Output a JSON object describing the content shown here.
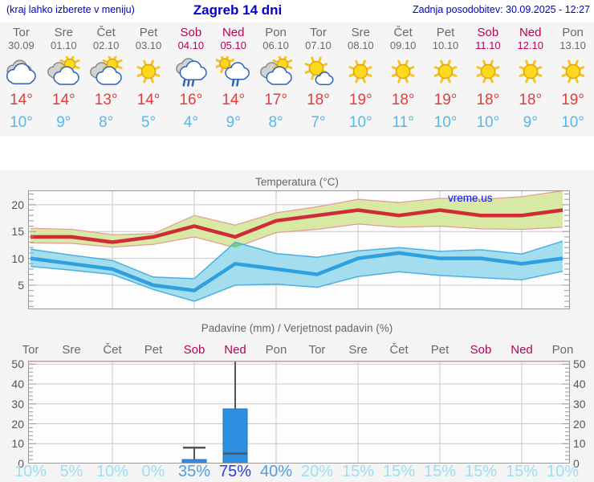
{
  "header": {
    "left_note": "(kraj lahko izberete v meniju)",
    "title": "Zagreb 14 dni",
    "updated": "Zadnja posodobitev: 30.09.2025 - 12:27"
  },
  "watermark": "vreme.us",
  "degree_symbol": "°",
  "days": [
    {
      "name": "Tor",
      "date": "30.09",
      "weekend": false,
      "icon": "cloudy",
      "high_label": "14°",
      "low_label": "10°",
      "prob_label": "10%",
      "prob": 10
    },
    {
      "name": "Sre",
      "date": "01.10",
      "weekend": false,
      "icon": "partly",
      "high_label": "14°",
      "low_label": "9°",
      "prob_label": "5%",
      "prob": 5
    },
    {
      "name": "Čet",
      "date": "02.10",
      "weekend": false,
      "icon": "partly",
      "high_label": "13°",
      "low_label": "8°",
      "prob_label": "10%",
      "prob": 10
    },
    {
      "name": "Pet",
      "date": "03.10",
      "weekend": false,
      "icon": "sunny",
      "high_label": "14°",
      "low_label": "5°",
      "prob_label": "0%",
      "prob": 0
    },
    {
      "name": "Sob",
      "date": "04.10",
      "weekend": true,
      "icon": "rain",
      "high_label": "16°",
      "low_label": "4°",
      "prob_label": "35%",
      "prob": 35
    },
    {
      "name": "Ned",
      "date": "05.10",
      "weekend": true,
      "icon": "sun-rain",
      "high_label": "14°",
      "low_label": "9°",
      "prob_label": "75%",
      "prob": 75
    },
    {
      "name": "Pon",
      "date": "06.10",
      "weekend": false,
      "icon": "partly",
      "high_label": "17°",
      "low_label": "8°",
      "prob_label": "40%",
      "prob": 40
    },
    {
      "name": "Tor",
      "date": "07.10",
      "weekend": false,
      "icon": "mostly-sunny",
      "high_label": "18°",
      "low_label": "7°",
      "prob_label": "20%",
      "prob": 20
    },
    {
      "name": "Sre",
      "date": "08.10",
      "weekend": false,
      "icon": "sunny",
      "high_label": "19°",
      "low_label": "10°",
      "prob_label": "15%",
      "prob": 15
    },
    {
      "name": "Čet",
      "date": "09.10",
      "weekend": false,
      "icon": "sunny",
      "high_label": "18°",
      "low_label": "11°",
      "prob_label": "15%",
      "prob": 15
    },
    {
      "name": "Pet",
      "date": "10.10",
      "weekend": false,
      "icon": "sunny",
      "high_label": "19°",
      "low_label": "10°",
      "prob_label": "15%",
      "prob": 15
    },
    {
      "name": "Sob",
      "date": "11.10",
      "weekend": true,
      "icon": "sunny",
      "high_label": "18°",
      "low_label": "10°",
      "prob_label": "15%",
      "prob": 15
    },
    {
      "name": "Ned",
      "date": "12.10",
      "weekend": true,
      "icon": "sunny",
      "high_label": "18°",
      "low_label": "9°",
      "prob_label": "15%",
      "prob": 15
    },
    {
      "name": "Pon",
      "date": "13.10",
      "weekend": false,
      "icon": "sunny",
      "high_label": "19°",
      "low_label": "10°",
      "prob_label": "10%",
      "prob": 10
    }
  ],
  "chart_data": [
    {
      "type": "line",
      "title": "Temperatura (°C)",
      "categories": [
        "Tor",
        "Sre",
        "Čet",
        "Pet",
        "Sob",
        "Ned",
        "Pon",
        "Tor",
        "Sre",
        "Čet",
        "Pet",
        "Sob",
        "Ned",
        "Pon"
      ],
      "ylim": [
        0.5,
        22.7
      ],
      "yticks": [
        5,
        10,
        15,
        20
      ],
      "grid": true,
      "watermark": "vreme.us",
      "series": [
        {
          "name": "max_temp",
          "values": [
            14,
            14,
            13,
            14,
            16,
            14,
            17,
            18,
            19,
            18,
            19,
            18,
            18,
            19
          ]
        },
        {
          "name": "max_range_upper",
          "values": [
            15.6,
            15.4,
            14.4,
            14.6,
            18.0,
            16.2,
            18.5,
            19.6,
            21.0,
            20.4,
            21.2,
            21.0,
            21.5,
            22.6
          ]
        },
        {
          "name": "max_range_lower",
          "values": [
            12.9,
            12.8,
            12.1,
            12.6,
            14.0,
            12.0,
            14.8,
            15.4,
            16.4,
            15.8,
            16.0,
            15.5,
            15.4,
            15.8
          ]
        },
        {
          "name": "min_temp",
          "values": [
            10,
            9,
            8,
            5,
            4,
            9,
            8,
            7,
            10,
            11,
            10,
            10,
            9,
            10
          ]
        },
        {
          "name": "min_range_upper",
          "values": [
            11.7,
            10.6,
            9.6,
            6.5,
            6.2,
            13.0,
            10.9,
            10.2,
            11.4,
            12.0,
            11.3,
            11.6,
            10.8,
            13.2
          ]
        },
        {
          "name": "min_range_lower",
          "values": [
            8.5,
            7.8,
            7.0,
            4.2,
            2.0,
            5.0,
            5.2,
            4.6,
            6.6,
            7.5,
            6.8,
            6.4,
            6.0,
            7.6
          ]
        }
      ]
    },
    {
      "type": "bar",
      "title": "Padavine (mm) / Verjetnost padavin (%)",
      "categories": [
        "Tor",
        "Sre",
        "Čet",
        "Pet",
        "Sob",
        "Ned",
        "Pon",
        "Tor",
        "Sre",
        "Čet",
        "Pet",
        "Sob",
        "Ned",
        "Pon"
      ],
      "ylim": [
        0,
        51.7
      ],
      "yticks": [
        0,
        10,
        20,
        30,
        40,
        50
      ],
      "grid": true,
      "values": [
        0,
        0,
        0,
        0,
        2,
        27.5,
        0,
        0,
        0,
        0,
        0,
        0,
        0,
        0
      ],
      "whiskers": [
        null,
        null,
        null,
        null,
        {
          "low": 0,
          "high": 8
        },
        {
          "low": 5,
          "high": 52
        },
        null,
        null,
        null,
        null,
        null,
        null,
        null,
        null
      ],
      "probabilities_percent": [
        10,
        5,
        10,
        0,
        35,
        75,
        40,
        20,
        15,
        15,
        15,
        15,
        15,
        10
      ]
    }
  ],
  "colors": {
    "header_blue": "#0000cc",
    "weekday": "#696969",
    "weekend": "#bb0054",
    "high_temp": "#e23d3d",
    "low_temp": "#56b7ea",
    "axis_text": "#555555",
    "title_text": "#666666",
    "grid": "#c9c9c9",
    "frame": "#999999",
    "tick": "#999999",
    "band_max": "#d8e9a3",
    "band_max_edge": "#e59898",
    "band_min": "#a4deee",
    "band_min_edge": "#49b0e4",
    "band_overlap": "#7dc97f",
    "line_max": "#cf2b38",
    "line_min": "#2f9fdf",
    "bar_fill": "#2e8fe0",
    "bar_edge": "#2272c2",
    "whisker": "#555555",
    "prob_low": "#9bdff4",
    "prob_mid": "#4f9de2",
    "prob_high": "#2a3ed2",
    "precip_top_edge": "#e08f8f",
    "watermark_blue": "#0010ee",
    "strip_bg": "#f5f5f5",
    "chart_bg": "#f4f4f4",
    "plot_bg": "#fdfdfd",
    "sun_fill": "#ffd91c",
    "sun_edge": "#e0a214",
    "sun_ray": "#f6c51d",
    "cloud_white": "#ffffff",
    "cloud_white_edge": "#2e62b8",
    "cloud_gray": "#d2d2d2",
    "cloud_gray_edge": "#8a8a8a",
    "rain_drop": "#2e62b8"
  }
}
